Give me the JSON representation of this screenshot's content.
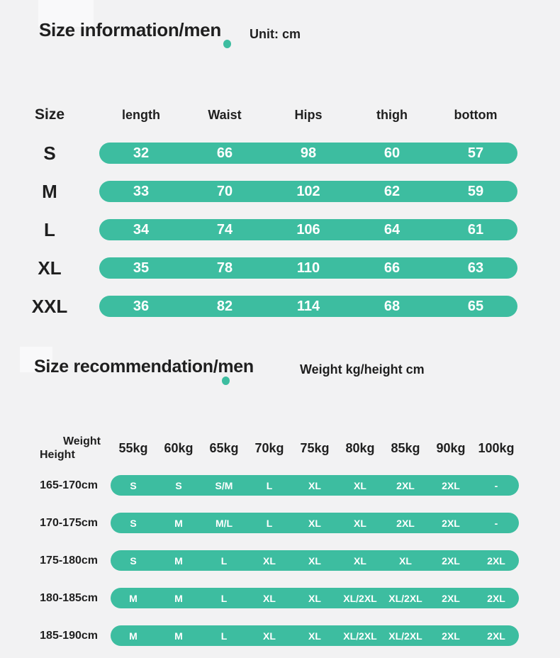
{
  "page": {
    "background_color": "#f2f2f3",
    "text_color": "#1f1f1f",
    "accent_color": "#3dbda0",
    "pill_text_color": "#ffffff"
  },
  "section1": {
    "title": "Size information/men",
    "unit_label": "Unit: cm",
    "table": {
      "size_header": "Size",
      "columns": [
        "length",
        "Waist",
        "Hips",
        "thigh",
        "bottom"
      ],
      "rows": [
        {
          "size": "S",
          "values": [
            "32",
            "66",
            "98",
            "60",
            "57"
          ]
        },
        {
          "size": "M",
          "values": [
            "33",
            "70",
            "102",
            "62",
            "59"
          ]
        },
        {
          "size": "L",
          "values": [
            "34",
            "74",
            "106",
            "64",
            "61"
          ]
        },
        {
          "size": "XL",
          "values": [
            "35",
            "78",
            "110",
            "66",
            "63"
          ]
        },
        {
          "size": "XXL",
          "values": [
            "36",
            "82",
            "114",
            "68",
            "65"
          ]
        }
      ]
    }
  },
  "section2": {
    "title": "Size recommendation/men",
    "unit_label": "Weight kg/height cm",
    "table": {
      "corner_top": "Weight",
      "corner_bottom": "Height",
      "columns": [
        "55kg",
        "60kg",
        "65kg",
        "70kg",
        "75kg",
        "80kg",
        "85kg",
        "90kg",
        "100kg"
      ],
      "rows": [
        {
          "height": "165-170cm",
          "values": [
            "S",
            "S",
            "S/M",
            "L",
            "XL",
            "XL",
            "2XL",
            "2XL",
            "-"
          ]
        },
        {
          "height": "170-175cm",
          "values": [
            "S",
            "M",
            "M/L",
            "L",
            "XL",
            "XL",
            "2XL",
            "2XL",
            "-"
          ]
        },
        {
          "height": "175-180cm",
          "values": [
            "S",
            "M",
            "L",
            "XL",
            "XL",
            "XL",
            "XL",
            "2XL",
            "2XL"
          ]
        },
        {
          "height": "180-185cm",
          "values": [
            "M",
            "M",
            "L",
            "XL",
            "XL",
            "XL/2XL",
            "XL/2XL",
            "2XL",
            "2XL"
          ]
        },
        {
          "height": "185-190cm",
          "values": [
            "M",
            "M",
            "L",
            "XL",
            "XL",
            "XL/2XL",
            "XL/2XL",
            "2XL",
            "2XL"
          ]
        }
      ]
    }
  },
  "chart_data": [
    {
      "type": "table",
      "title": "Size information/men",
      "unit": "cm",
      "columns": [
        "Size",
        "length",
        "Waist",
        "Hips",
        "thigh",
        "bottom"
      ],
      "rows": [
        [
          "S",
          32,
          66,
          98,
          60,
          57
        ],
        [
          "M",
          33,
          70,
          102,
          62,
          59
        ],
        [
          "L",
          34,
          74,
          106,
          64,
          61
        ],
        [
          "XL",
          35,
          78,
          110,
          66,
          63
        ],
        [
          "XXL",
          36,
          82,
          114,
          68,
          65
        ]
      ]
    },
    {
      "type": "table",
      "title": "Size recommendation/men",
      "unit": "Weight kg/height cm",
      "columns": [
        "Height\\Weight",
        "55kg",
        "60kg",
        "65kg",
        "70kg",
        "75kg",
        "80kg",
        "85kg",
        "90kg",
        "100kg"
      ],
      "rows": [
        [
          "165-170cm",
          "S",
          "S",
          "S/M",
          "L",
          "XL",
          "XL",
          "2XL",
          "2XL",
          "-"
        ],
        [
          "170-175cm",
          "S",
          "M",
          "M/L",
          "L",
          "XL",
          "XL",
          "2XL",
          "2XL",
          "-"
        ],
        [
          "175-180cm",
          "S",
          "M",
          "L",
          "XL",
          "XL",
          "XL",
          "XL",
          "2XL",
          "2XL"
        ],
        [
          "180-185cm",
          "M",
          "M",
          "L",
          "XL",
          "XL",
          "XL/2XL",
          "XL/2XL",
          "2XL",
          "2XL"
        ],
        [
          "185-190cm",
          "M",
          "M",
          "L",
          "XL",
          "XL",
          "XL/2XL",
          "XL/2XL",
          "2XL",
          "2XL"
        ]
      ]
    }
  ]
}
